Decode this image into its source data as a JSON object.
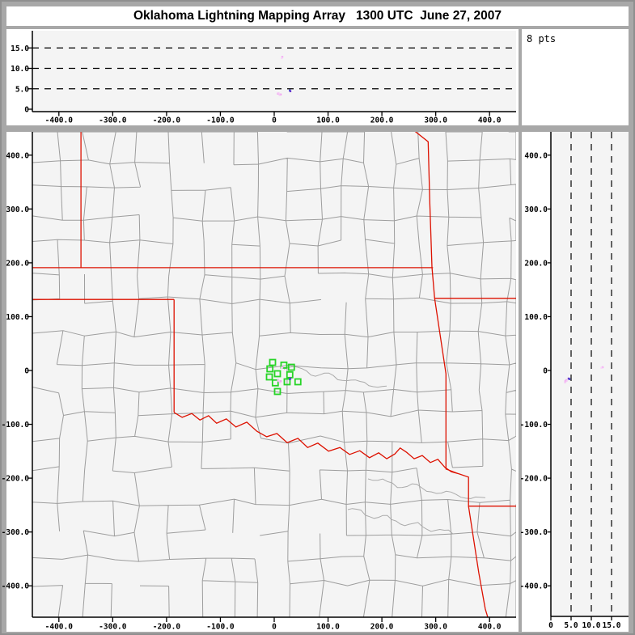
{
  "title": "Oklahoma Lightning Mapping Array   1300 UTC  June 27, 2007",
  "colors": {
    "background_gray": "#a8a8a8",
    "panel_white": "#ffffff",
    "plot_bg": "#f4f4f4",
    "county_line": "#9d9d9d",
    "river_line": "#ababab",
    "state_border_red": "#dd1100",
    "station_green": "#27d427",
    "axis_black": "#000000"
  },
  "chart_data": [
    {
      "id": "ew_altitude_panel",
      "type": "scatter",
      "description": "Altitude (km) vs East-West distance (km) cross-section",
      "x_axis": {
        "range_km": [
          -450,
          450
        ],
        "tick_values": [
          -400,
          -300,
          -200,
          -100,
          0,
          100,
          200,
          300,
          400
        ],
        "tick_labels": [
          "-400.0",
          "-300.0",
          "-200.0",
          "-100.0",
          "0",
          "100.0",
          "200.0",
          "300.0",
          "400.0"
        ]
      },
      "y_axis": {
        "range_km": [
          0,
          19
        ],
        "tick_values": [
          0,
          5,
          10,
          15
        ],
        "tick_labels": [
          "0",
          "5.0",
          "10.0",
          "15.0"
        ],
        "dashed_gridlines": [
          5,
          10,
          15
        ]
      },
      "points_from": "plan_view_map.sources projected as (ew_km, alt_km)"
    },
    {
      "id": "altitude_histogram_panel",
      "type": "histogram",
      "label": "8 pts",
      "bars": []
    },
    {
      "id": "plan_view_map",
      "type": "map-scatter",
      "description": "Plan view map, km east and north of network center",
      "x_axis": {
        "range_km": [
          -450,
          450
        ],
        "tick_values": [
          -400,
          -300,
          -200,
          -100,
          0,
          100,
          200,
          300,
          400
        ],
        "tick_labels": [
          "-400.0",
          "-300.0",
          "-200.0",
          "-100.0",
          "0",
          "100.0",
          "200.0",
          "300.0",
          "400.0"
        ]
      },
      "y_axis": {
        "range_km": [
          -460,
          445
        ],
        "tick_values": [
          400,
          300,
          200,
          100,
          0,
          -100,
          -200,
          -300,
          -400
        ],
        "tick_labels": [
          "400.0",
          "300.0",
          "200.0",
          "100.0",
          "0",
          "-100.0",
          "-200.0",
          "-300.0",
          "-400.0"
        ]
      },
      "stations_km": [
        [
          -3,
          15
        ],
        [
          -8,
          3
        ],
        [
          18,
          10
        ],
        [
          32,
          6
        ],
        [
          6,
          -6
        ],
        [
          -9,
          -12
        ],
        [
          29,
          -8
        ],
        [
          2,
          -23
        ],
        [
          24,
          -21
        ],
        [
          44,
          -21
        ],
        [
          6,
          -39
        ]
      ],
      "sources": [
        {
          "ew_km": 7,
          "ns_km": -18,
          "alt_km": 3.8,
          "color": "#ef9fef"
        },
        {
          "ew_km": 12,
          "ns_km": -20,
          "alt_km": 3.6,
          "color": "#ef9fef"
        },
        {
          "ew_km": 10,
          "ns_km": -22,
          "alt_km": 3.5,
          "color": "#f6c6f6"
        },
        {
          "ew_km": 8,
          "ns_km": -19,
          "alt_km": 3.9,
          "color": "#f6c6f6"
        },
        {
          "ew_km": 30,
          "ns_km": -15,
          "alt_km": 4.4,
          "color": "#7733cc"
        },
        {
          "ew_km": 29,
          "ns_km": -16,
          "alt_km": 4.6,
          "color": "#4444cc"
        },
        {
          "ew_km": 15,
          "ns_km": 6,
          "alt_km": 12.8,
          "color": "#f2aaf2"
        },
        {
          "ew_km": 14,
          "ns_km": 5,
          "alt_km": 12.5,
          "color": "#f9d5f9"
        }
      ],
      "state_borders_km": [
        [
          [
            -449,
            191
          ],
          [
            295,
            191
          ]
        ],
        [
          [
            -359,
            443
          ],
          [
            -359,
            191
          ]
        ],
        [
          [
            -449,
            132
          ],
          [
            -186,
            132
          ]
        ],
        [
          [
            -186,
            132
          ],
          [
            -186,
            -78
          ]
        ],
        [
          [
            -186,
            -78
          ],
          [
            -171,
            -87
          ],
          [
            -153,
            -80
          ],
          [
            -138,
            -92
          ],
          [
            -122,
            -84
          ],
          [
            -107,
            -98
          ],
          [
            -89,
            -90
          ],
          [
            -71,
            -105
          ],
          [
            -51,
            -96
          ],
          [
            -32,
            -113
          ],
          [
            -14,
            -123
          ],
          [
            5,
            -117
          ],
          [
            24,
            -134
          ],
          [
            44,
            -126
          ],
          [
            62,
            -143
          ],
          [
            81,
            -135
          ],
          [
            101,
            -150
          ],
          [
            122,
            -143
          ],
          [
            140,
            -156
          ],
          [
            159,
            -149
          ],
          [
            177,
            -162
          ],
          [
            194,
            -153
          ],
          [
            209,
            -164
          ],
          [
            224,
            -155
          ],
          [
            234,
            -144
          ],
          [
            246,
            -152
          ],
          [
            260,
            -164
          ],
          [
            275,
            -158
          ],
          [
            290,
            -171
          ],
          [
            304,
            -165
          ],
          [
            317,
            -180
          ],
          [
            329,
            -188
          ],
          [
            343,
            -192
          ]
        ],
        [
          [
            257,
            448
          ],
          [
            286,
            425
          ],
          [
            289,
            313
          ],
          [
            293,
            192
          ],
          [
            298,
            134
          ]
        ],
        [
          [
            298,
            134
          ],
          [
            460,
            134
          ]
        ],
        [
          [
            298,
            134
          ],
          [
            319,
            -6
          ],
          [
            319,
            -183
          ],
          [
            343,
            -192
          ]
        ],
        [
          [
            343,
            -192
          ],
          [
            361,
            -198
          ],
          [
            361,
            -252
          ],
          [
            460,
            -252
          ]
        ],
        [
          [
            361,
            -252
          ],
          [
            380,
            -376
          ],
          [
            392,
            -443
          ],
          [
            398,
            -463
          ]
        ]
      ]
    },
    {
      "id": "ns_altitude_panel",
      "type": "scatter",
      "description": "North-South distance (km) vs altitude (km) cross-section",
      "x_axis": {
        "range_km": [
          0,
          19
        ],
        "tick_values": [
          0,
          5,
          10,
          15
        ],
        "tick_labels": [
          "0",
          "5.0",
          "10.0",
          "15.0"
        ],
        "dashed_gridlines": [
          5,
          10,
          15
        ]
      },
      "y_axis": {
        "range_km": [
          -460,
          445
        ],
        "tick_values": [
          400,
          300,
          200,
          100,
          0,
          -100,
          -200,
          -300,
          -400
        ],
        "tick_labels": [
          "400.0",
          "300.0",
          "200.0",
          "100.0",
          "0",
          "-100.0",
          "-200.0",
          "-300.0",
          "-400.0"
        ]
      },
      "points_from": "plan_view_map.sources projected as (alt_km, ns_km)"
    }
  ]
}
